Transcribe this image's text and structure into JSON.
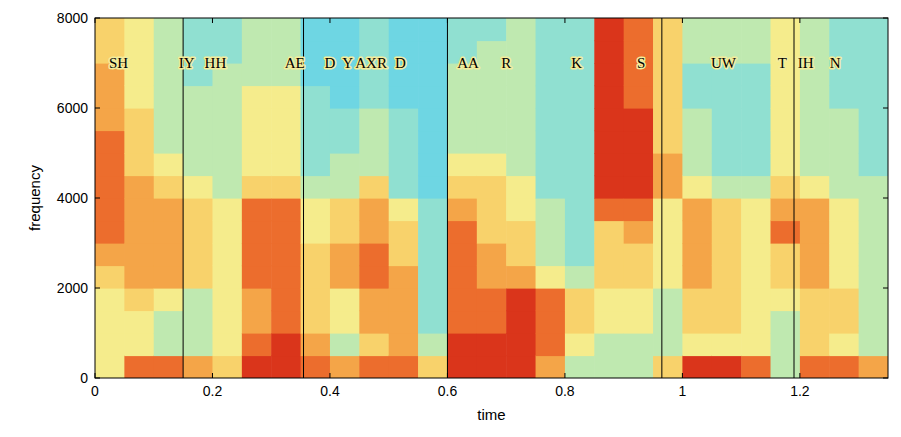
{
  "chart_data": {
    "type": "heatmap",
    "x_label": "time",
    "y_label": "frequency",
    "xlim": [
      0,
      1.35
    ],
    "ylim": [
      0,
      8000
    ],
    "xticks": [
      0,
      0.2,
      0.4,
      0.6,
      0.8,
      1,
      1.2
    ],
    "yticks": [
      0,
      2000,
      4000,
      6000,
      8000
    ],
    "zlim": [
      0,
      10
    ],
    "x_bins": [
      0,
      0.05,
      0.1,
      0.15,
      0.2,
      0.25,
      0.3,
      0.35,
      0.4,
      0.45,
      0.5,
      0.55,
      0.6,
      0.65,
      0.7,
      0.75,
      0.8,
      0.85,
      0.9,
      0.95,
      1,
      1.05,
      1.1,
      1.15,
      1.2,
      1.25,
      1.3,
      1.35
    ],
    "y_bins": [
      0,
      500,
      1000,
      1500,
      2000,
      2500,
      3000,
      3500,
      4000,
      4500,
      5000,
      5500,
      6000,
      6500,
      7000,
      7500,
      8000
    ],
    "cells": [
      [
        5,
        5,
        5,
        5,
        6,
        7,
        8,
        8,
        8,
        8,
        8,
        7,
        7,
        7,
        6,
        6
      ],
      [
        8,
        5,
        5,
        6,
        7,
        7,
        7,
        7,
        7,
        6,
        6,
        6,
        5,
        5,
        5,
        5
      ],
      [
        8,
        4,
        4,
        5,
        7,
        7,
        7,
        7,
        6,
        5,
        4,
        4,
        4,
        4,
        4,
        4
      ],
      [
        7,
        4,
        4,
        4,
        6,
        6,
        6,
        6,
        5,
        4,
        4,
        4,
        4,
        3,
        3,
        3
      ],
      [
        6,
        5,
        5,
        5,
        5,
        5,
        5,
        5,
        4,
        4,
        4,
        4,
        4,
        4,
        3,
        3
      ],
      [
        9,
        8,
        7,
        7,
        8,
        8,
        8,
        8,
        6,
        5,
        5,
        5,
        5,
        4,
        4,
        4
      ],
      [
        9,
        9,
        8,
        8,
        8,
        8,
        8,
        8,
        6,
        5,
        5,
        5,
        5,
        4,
        4,
        4
      ],
      [
        8,
        7,
        6,
        6,
        6,
        6,
        5,
        5,
        4,
        3,
        3,
        3,
        3,
        2,
        2,
        2
      ],
      [
        7,
        4,
        5,
        5,
        7,
        7,
        6,
        6,
        4,
        4,
        3,
        3,
        2,
        2,
        2,
        2
      ],
      [
        8,
        6,
        7,
        7,
        8,
        8,
        7,
        7,
        6,
        4,
        4,
        4,
        3,
        3,
        3,
        3
      ],
      [
        8,
        7,
        7,
        7,
        7,
        6,
        6,
        5,
        3,
        3,
        3,
        3,
        2,
        2,
        2,
        2
      ],
      [
        6,
        4,
        3,
        3,
        3,
        3,
        3,
        3,
        2,
        2,
        2,
        2,
        2,
        2,
        2,
        2
      ],
      [
        9,
        9,
        8,
        8,
        8,
        8,
        8,
        7,
        6,
        5,
        4,
        4,
        4,
        4,
        3,
        3
      ],
      [
        9,
        9,
        8,
        8,
        7,
        7,
        6,
        6,
        6,
        5,
        4,
        4,
        4,
        4,
        4,
        3
      ],
      [
        9,
        9,
        9,
        9,
        7,
        6,
        6,
        5,
        5,
        4,
        4,
        4,
        4,
        4,
        4,
        4
      ],
      [
        7,
        8,
        8,
        8,
        5,
        4,
        4,
        4,
        3,
        3,
        3,
        3,
        3,
        3,
        3,
        3
      ],
      [
        4,
        5,
        6,
        6,
        4,
        3,
        3,
        3,
        3,
        3,
        3,
        3,
        3,
        3,
        3,
        3
      ],
      [
        4,
        4,
        5,
        5,
        6,
        6,
        6,
        8,
        9,
        9,
        9,
        9,
        9,
        9,
        9,
        9
      ],
      [
        4,
        4,
        5,
        5,
        6,
        6,
        7,
        8,
        9,
        9,
        9,
        9,
        8,
        8,
        8,
        8
      ],
      [
        6,
        4,
        4,
        4,
        5,
        5,
        5,
        5,
        7,
        7,
        6,
        6,
        6,
        6,
        6,
        6
      ],
      [
        9,
        5,
        6,
        6,
        7,
        7,
        7,
        7,
        5,
        4,
        4,
        4,
        3,
        3,
        4,
        4
      ],
      [
        9,
        5,
        6,
        6,
        6,
        6,
        6,
        6,
        4,
        3,
        3,
        3,
        3,
        3,
        4,
        4
      ],
      [
        8,
        5,
        5,
        5,
        5,
        5,
        5,
        5,
        4,
        3,
        3,
        3,
        3,
        3,
        4,
        4
      ],
      [
        4,
        4,
        4,
        5,
        6,
        6,
        8,
        7,
        6,
        5,
        5,
        5,
        5,
        5,
        5,
        5
      ],
      [
        8,
        6,
        6,
        6,
        7,
        7,
        7,
        7,
        5,
        4,
        4,
        4,
        4,
        4,
        4,
        4
      ],
      [
        8,
        5,
        6,
        6,
        5,
        5,
        5,
        5,
        4,
        4,
        4,
        4,
        3,
        3,
        3,
        3
      ],
      [
        7,
        4,
        4,
        4,
        4,
        4,
        4,
        4,
        4,
        3,
        3,
        3,
        3,
        3,
        3,
        3
      ]
    ],
    "boundaries": [
      0.15,
      0.355,
      0.6,
      0.965,
      1.19
    ],
    "annotations": [
      {
        "text": "SH",
        "x": 0.04
      },
      {
        "text": "IY",
        "x": 0.156
      },
      {
        "text": "HH",
        "x": 0.205
      },
      {
        "text": "AE",
        "x": 0.34
      },
      {
        "text": "D",
        "x": 0.4
      },
      {
        "text": "Y",
        "x": 0.43
      },
      {
        "text": "AXR",
        "x": 0.47
      },
      {
        "text": "D",
        "x": 0.52
      },
      {
        "text": "AA",
        "x": 0.635
      },
      {
        "text": "R",
        "x": 0.7
      },
      {
        "text": "K",
        "x": 0.82
      },
      {
        "text": "S",
        "x": 0.93
      },
      {
        "text": "UW",
        "x": 1.07
      },
      {
        "text": "T",
        "x": 1.17
      },
      {
        "text": "IH",
        "x": 1.21
      },
      {
        "text": "N",
        "x": 1.26
      }
    ]
  }
}
